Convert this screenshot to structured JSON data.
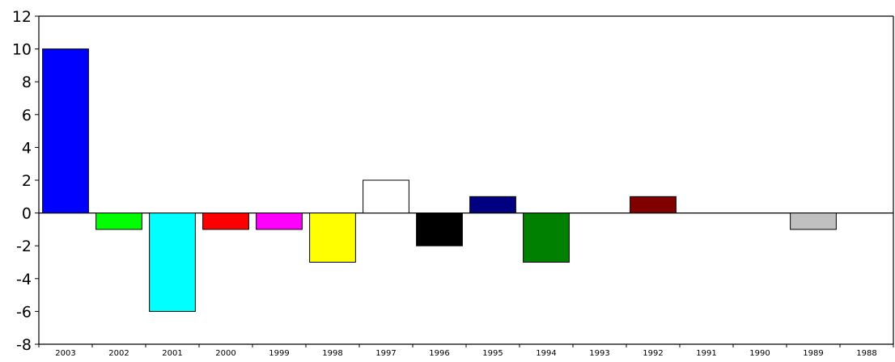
{
  "chart_data": {
    "type": "bar",
    "categories": [
      "2003",
      "2002",
      "2001",
      "2000",
      "1999",
      "1998",
      "1997",
      "1996",
      "1995",
      "1994",
      "1993",
      "1992",
      "1991",
      "1990",
      "1989",
      "1988"
    ],
    "values": [
      10,
      -1,
      -6,
      -1,
      -1,
      -3,
      2,
      -2,
      1,
      -3,
      0,
      1,
      0,
      0,
      -1,
      0
    ],
    "colors": [
      "#0000ff",
      "#00ff00",
      "#00ffff",
      "#ff0000",
      "#ff00ff",
      "#ffff00",
      "#ffffff",
      "#000000",
      "#000080",
      "#008000",
      "#808000",
      "#800000",
      "#008080",
      "#c0c0c0",
      "#c0c0c0",
      "#808080"
    ],
    "ylim": [
      -8,
      12
    ],
    "yticks": [
      "12",
      "10",
      "8",
      "6",
      "4",
      "2",
      "0",
      "-2",
      "-4",
      "-6",
      "-8"
    ],
    "ytick_values": [
      12,
      10,
      8,
      6,
      4,
      2,
      0,
      -2,
      -4,
      -6,
      -8
    ],
    "grid": false,
    "title": "",
    "xlabel": "",
    "ylabel": ""
  }
}
